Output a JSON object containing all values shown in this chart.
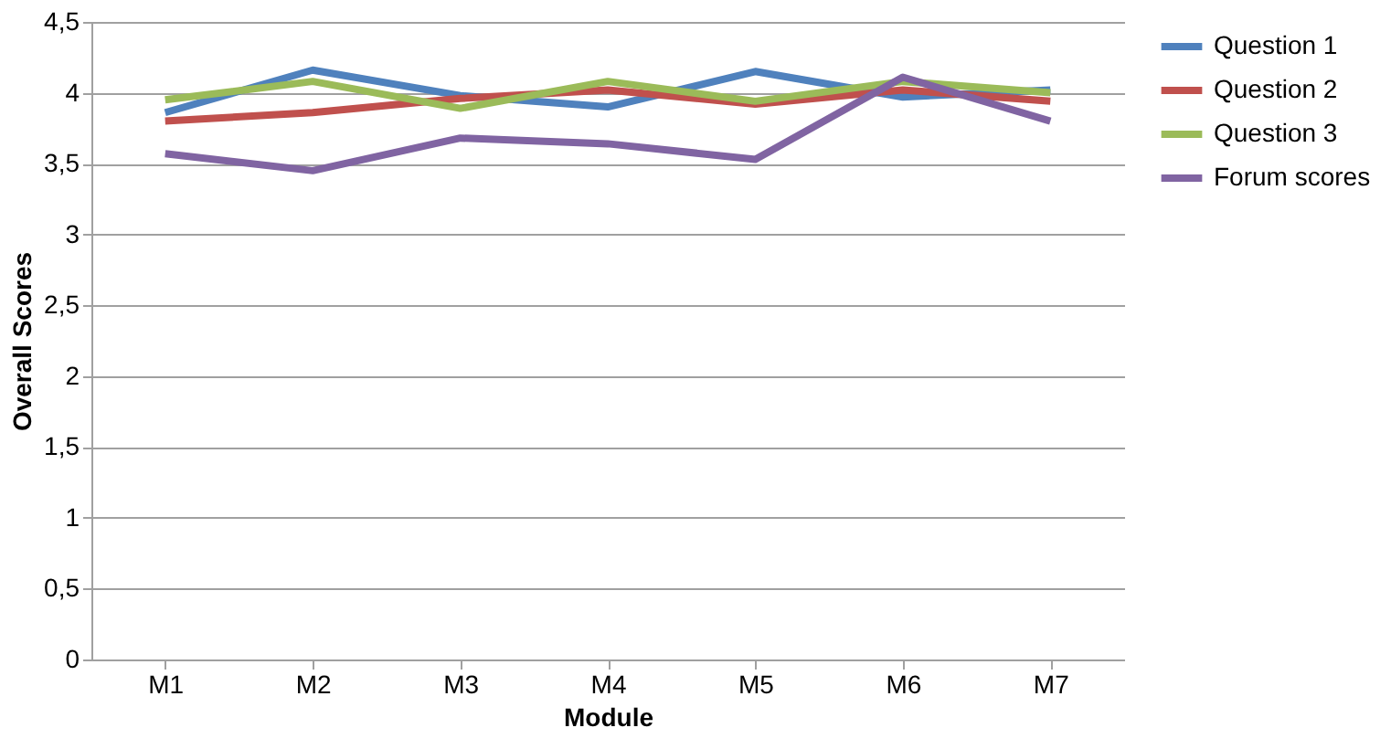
{
  "chart_data": {
    "type": "line",
    "xlabel": "Module",
    "ylabel": "Overall Scores",
    "categories": [
      "M1",
      "M2",
      "M3",
      "M4",
      "M5",
      "M6",
      "M7"
    ],
    "series": [
      {
        "name": "Question 1",
        "color": "#4f81bd",
        "values": [
          3.86,
          4.16,
          3.98,
          3.9,
          4.15,
          3.97,
          4.02
        ]
      },
      {
        "name": "Question 2",
        "color": "#c0504d",
        "values": [
          3.8,
          3.86,
          3.96,
          4.02,
          3.92,
          4.02,
          3.94
        ]
      },
      {
        "name": "Question 3",
        "color": "#9bbb59",
        "values": [
          3.95,
          4.08,
          3.89,
          4.08,
          3.94,
          4.08,
          4.0
        ]
      },
      {
        "name": "Forum scores",
        "color": "#8064a2",
        "values": [
          3.57,
          3.45,
          3.68,
          3.64,
          3.53,
          4.11,
          3.8
        ]
      }
    ],
    "ylim": [
      0,
      4.5
    ],
    "yticks": [
      0,
      {
        "value": 0.5,
        "label": "0,5"
      },
      1,
      {
        "value": 1.5,
        "label": "1,5"
      },
      2,
      {
        "value": 2.5,
        "label": "2,5"
      },
      3,
      {
        "value": 3.5,
        "label": "3,5"
      },
      4,
      {
        "value": 4.5,
        "label": "4,5"
      }
    ],
    "grid": "y",
    "legend": "right",
    "marker": "none",
    "line_style": "solid"
  }
}
